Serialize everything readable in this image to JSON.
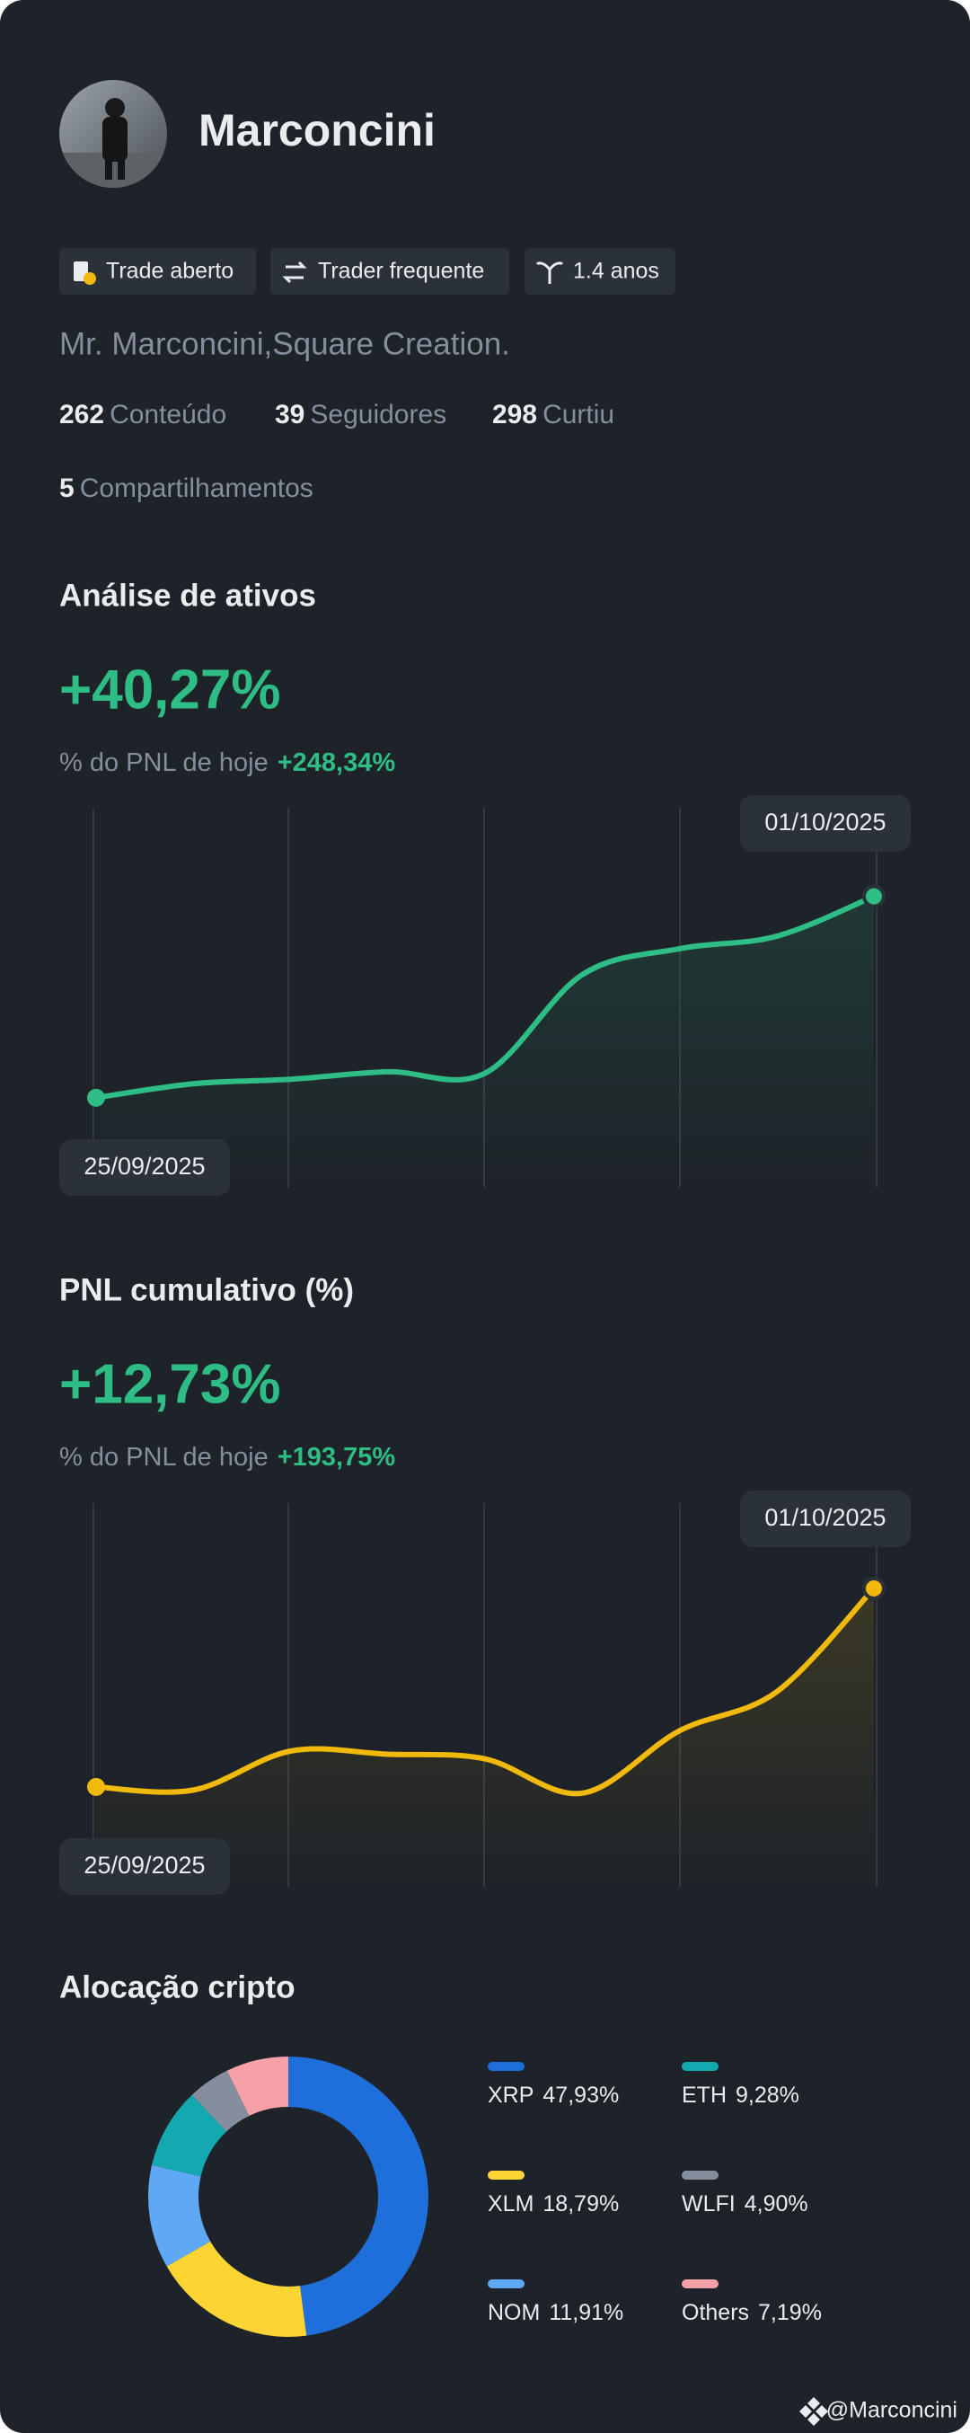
{
  "profile": {
    "name": "Marconcini",
    "tags": [
      "Trade aberto",
      "Trader frequente",
      "1.4 anos"
    ],
    "bio": "Mr. Marconcini,Square Creation.",
    "stats": [
      {
        "value": 262,
        "label": "Conteúdo"
      },
      {
        "value": 39,
        "label": "Seguidores"
      },
      {
        "value": 298,
        "label": "Curtiu"
      },
      {
        "value": 5,
        "label": "Compartilhamentos"
      }
    ]
  },
  "chart_data": [
    {
      "type": "line",
      "title": "Análise de ativos",
      "headline": "+40,27%",
      "subtitle": "% do PNL de hoje",
      "subtitle_value": "+248,34%",
      "categories": [
        "25/09/2025",
        null,
        null,
        null,
        null,
        null,
        null,
        null,
        "01/10/2025"
      ],
      "series": [
        {
          "color": "#2ebd85",
          "values": [
            0,
            2.8,
            3.7,
            5.2,
            4.9,
            24.6,
            29.8,
            32.3,
            40.27
          ]
        }
      ],
      "ylim": [
        -18,
        58
      ]
    },
    {
      "type": "line",
      "title": "PNL cumulativo (%)",
      "headline": "+12,73%",
      "subtitle": "% do PNL de hoje",
      "subtitle_value": "+193,75%",
      "categories": [
        "25/09/2025",
        null,
        null,
        null,
        null,
        null,
        null,
        null,
        "01/10/2025"
      ],
      "series": [
        {
          "color": "#f0b90b",
          "values": [
            0,
            -0.2,
            2.3,
            2.1,
            1.8,
            -0.4,
            3.6,
            6.1,
            12.73
          ]
        }
      ],
      "ylim": [
        -6.4,
        18.2
      ]
    },
    {
      "type": "donut",
      "title": "Alocação cripto",
      "categories": [
        "XRP",
        "XLM",
        "NOM",
        "ETH",
        "WLFI",
        "Others"
      ],
      "values": [
        47.93,
        18.79,
        11.91,
        9.28,
        4.9,
        7.19
      ],
      "value_labels": [
        "47,93%",
        "18,79%",
        "11,91%",
        "9,28%",
        "4,90%",
        "7,19%"
      ],
      "colors": [
        "#1f6fdb",
        "#fcd535",
        "#5ea8f5",
        "#14a8b0",
        "#848e9c",
        "#f6a0a8"
      ]
    }
  ],
  "footer": "@Marconcini"
}
